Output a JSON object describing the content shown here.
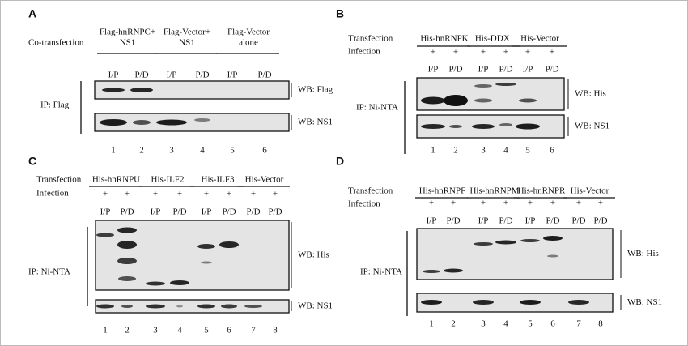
{
  "panels": [
    {
      "label": "A",
      "rows": [
        "Co-transfection"
      ],
      "groups": [
        [
          "Flag-hnRNPC+",
          "NS1"
        ],
        [
          "Flag-Vector+",
          "NS1"
        ],
        [
          "Flag-Vector",
          "alone"
        ]
      ],
      "plus": [],
      "lanes": [
        "I/P",
        "P/D",
        "I/P",
        "P/D",
        "I/P",
        "P/D"
      ],
      "numbers": [
        "1",
        "2",
        "3",
        "4",
        "5",
        "6"
      ],
      "ip": "IP: Flag",
      "wb": [
        "WB: Flag",
        "WB: NS1"
      ]
    },
    {
      "label": "B",
      "rows": [
        "Transfection",
        "Infection"
      ],
      "groups": [
        [
          "His-hnRNPK"
        ],
        [
          "His-DDX1"
        ],
        [
          "His-Vector"
        ]
      ],
      "plus": [
        "+",
        "+",
        "+",
        "+",
        "+",
        "+"
      ],
      "lanes": [
        "I/P",
        "P/D",
        "I/P",
        "P/D",
        "I/P",
        "P/D"
      ],
      "numbers": [
        "1",
        "2",
        "3",
        "4",
        "5",
        "6"
      ],
      "ip": "IP: Ni-NTA",
      "wb": [
        "WB: His",
        "WB: NS1"
      ]
    },
    {
      "label": "C",
      "rows": [
        "Transfection",
        "Infection"
      ],
      "groups": [
        [
          "His-hnRNPU"
        ],
        [
          "His-ILF2"
        ],
        [
          "His-ILF3"
        ],
        [
          "His-Vector"
        ]
      ],
      "plus": [
        "+",
        "+",
        "+",
        "+",
        "+",
        "+",
        "+",
        "+"
      ],
      "lanes": [
        "I/P",
        "P/D",
        "I/P",
        "P/D",
        "I/P",
        "P/D",
        "P/D",
        "P/D"
      ],
      "numbers": [
        "1",
        "2",
        "3",
        "4",
        "5",
        "6",
        "7",
        "8"
      ],
      "ip": "IP: Ni-NTA",
      "wb": [
        "WB: His",
        "WB: NS1"
      ]
    },
    {
      "label": "D",
      "rows": [
        "Transfection",
        "Infection"
      ],
      "groups": [
        [
          "His-hnRNPF"
        ],
        [
          "His-hnRNPM"
        ],
        [
          "His-hnRNPR"
        ],
        [
          "His-Vector"
        ]
      ],
      "plus": [
        "+",
        "+",
        "+",
        "+",
        "+",
        "+",
        "+",
        "+"
      ],
      "lanes": [
        "I/P",
        "P/D",
        "I/P",
        "P/D",
        "I/P",
        "P/D",
        "P/D",
        "P/D"
      ],
      "numbers": [
        "1",
        "2",
        "3",
        "4",
        "5",
        "6",
        "7",
        "8"
      ],
      "ip": "IP: Ni-NTA",
      "wb": [
        "WB: His",
        "WB: NS1"
      ]
    }
  ]
}
